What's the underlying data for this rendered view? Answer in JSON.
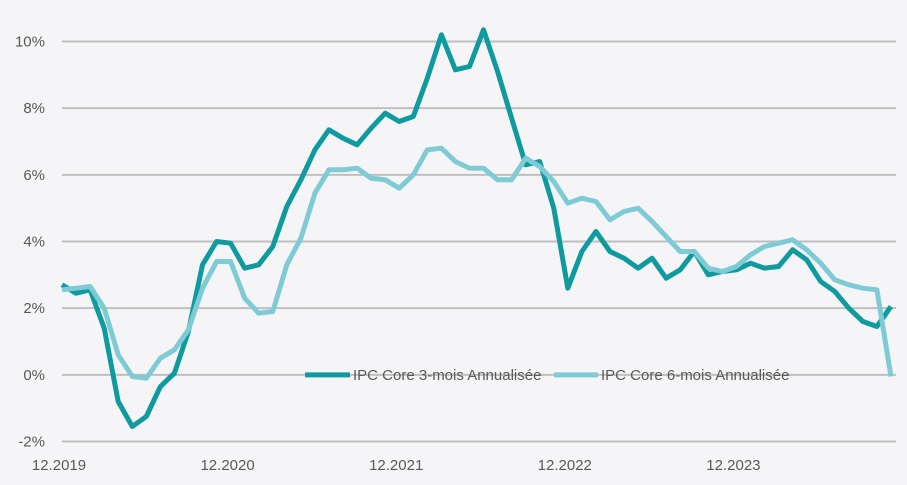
{
  "chart_data": {
    "type": "line",
    "title": "",
    "xlabel": "",
    "ylabel": "",
    "ylim": [
      -2,
      10
    ],
    "y_ticks": [
      -2,
      0,
      2,
      4,
      6,
      8,
      10
    ],
    "y_tick_labels": [
      "-2%",
      "0%",
      "2%",
      "4%",
      "6%",
      "8%",
      "10%"
    ],
    "x_tick_labels": [
      "12.2019",
      "12.2020",
      "12.2021",
      "12.2022",
      "12.2023"
    ],
    "x_tick_month_index": [
      0,
      12,
      24,
      36,
      48
    ],
    "x_start": "12.2019",
    "x_period": "monthly",
    "x_count": 60,
    "grid": "horizontal",
    "legend_position": "bottom-center-inside",
    "series": [
      {
        "name": "IPC Core 3-mois Annualisée",
        "color": "#0e9a9e",
        "values": [
          2.7,
          2.45,
          2.55,
          1.4,
          -0.8,
          -1.55,
          -1.25,
          -0.35,
          0.05,
          1.3,
          3.3,
          4.0,
          3.95,
          3.2,
          3.3,
          3.85,
          5.05,
          5.85,
          6.75,
          7.35,
          7.1,
          6.9,
          7.4,
          7.85,
          7.6,
          7.75,
          8.9,
          10.2,
          9.15,
          9.25,
          10.35,
          9.1,
          7.7,
          6.3,
          6.4,
          5.0,
          2.6,
          3.7,
          4.3,
          3.7,
          3.5,
          3.2,
          3.5,
          2.9,
          3.15,
          3.7,
          3.0,
          3.1,
          3.15,
          3.35,
          3.2,
          3.25,
          3.75,
          3.45,
          2.8,
          2.5,
          2.0,
          1.6,
          1.45,
          2.05
        ]
      },
      {
        "name": "IPC Core 6-mois Annualisée",
        "color": "#7ecbd6",
        "values": [
          2.55,
          2.6,
          2.65,
          2.0,
          0.6,
          -0.05,
          -0.1,
          0.5,
          0.75,
          1.35,
          2.6,
          3.4,
          3.4,
          2.3,
          1.85,
          1.9,
          3.3,
          4.1,
          5.45,
          6.15,
          6.15,
          6.2,
          5.9,
          5.85,
          5.6,
          6.0,
          6.75,
          6.8,
          6.4,
          6.2,
          6.2,
          5.85,
          5.85,
          6.5,
          6.25,
          5.8,
          5.15,
          5.3,
          5.2,
          4.65,
          4.9,
          5.0,
          4.6,
          4.15,
          3.7,
          3.7,
          3.2,
          3.1,
          3.25,
          3.6,
          3.85,
          3.95,
          4.05,
          3.75,
          3.35,
          2.85,
          2.7,
          2.6,
          2.55,
          -0.05
        ]
      }
    ]
  },
  "colors": {
    "background": "#f5f5f7",
    "grid": "#bfbfbf",
    "text": "#595959"
  }
}
